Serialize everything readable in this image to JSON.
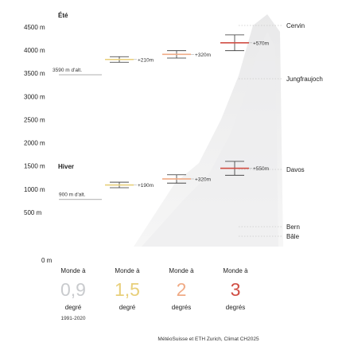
{
  "chart_data": {
    "type": "errorbar",
    "title": "",
    "xlabel": "",
    "ylabel": "",
    "ylim": [
      0,
      4500
    ],
    "y_ticks": [
      0,
      500,
      1000,
      1500,
      2000,
      2500,
      3000,
      3500,
      4000,
      4500
    ],
    "y_tick_labels": [
      "0 m",
      "500 m",
      "1000 m",
      "1500 m",
      "2000 m",
      "2500 m",
      "3000 m",
      "3500 m",
      "4000 m",
      "4500 m"
    ],
    "grid": false,
    "reference_places": [
      {
        "name": "Cervin",
        "altitude": 4478
      },
      {
        "name": "Jungfraujoch",
        "altitude": 3466
      },
      {
        "name": "Davos",
        "altitude": 1560
      },
      {
        "name": "Bern",
        "altitude": 540
      },
      {
        "name": "Bâle",
        "altitude": 260
      }
    ],
    "panels": [
      {
        "name": "Été",
        "baseline_label": "3590 m d'alt.",
        "baseline": 3590,
        "points": [
          {
            "scenario": "Monde à 1,5 degré",
            "altitude": 3800,
            "range": [
              3740,
              3860
            ],
            "label": "+210m"
          },
          {
            "scenario": "Monde à 2 degrés",
            "altitude": 3910,
            "range": [
              3830,
              3990
            ],
            "label": "+320m"
          },
          {
            "scenario": "Monde à 3 degrés",
            "altitude": 4160,
            "range": [
              3990,
              4330
            ],
            "label": "+570m"
          }
        ]
      },
      {
        "name": "Hiver",
        "baseline_label": "900 m d'alt.",
        "baseline": 900,
        "points": [
          {
            "scenario": "Monde à 1,5 degré",
            "altitude": 1090,
            "range": [
              1030,
              1150
            ],
            "label": "+190m"
          },
          {
            "scenario": "Monde à 2 degrés",
            "altitude": 1220,
            "range": [
              1130,
              1310
            ],
            "label": "+320m"
          },
          {
            "scenario": "Monde à 3 degrés",
            "altitude": 1450,
            "range": [
              1300,
              1600
            ],
            "label": "+550m"
          }
        ]
      }
    ],
    "warming_scenarios": [
      {
        "head": "Monde à",
        "value": "0,9",
        "unit": "degré",
        "note": "1991-2020",
        "color": "#c9cbce"
      },
      {
        "head": "Monde à",
        "value": "1,5",
        "unit": "degré",
        "note": "",
        "color": "#e8cf7a"
      },
      {
        "head": "Monde à",
        "value": "2",
        "unit": "degrés",
        "note": "",
        "color": "#f0ab86"
      },
      {
        "head": "Monde à",
        "value": "3",
        "unit": "degrés",
        "note": "",
        "color": "#d04e44"
      }
    ],
    "source": "MétéoSuisse et ETH Zurich, Climat CH2025"
  }
}
